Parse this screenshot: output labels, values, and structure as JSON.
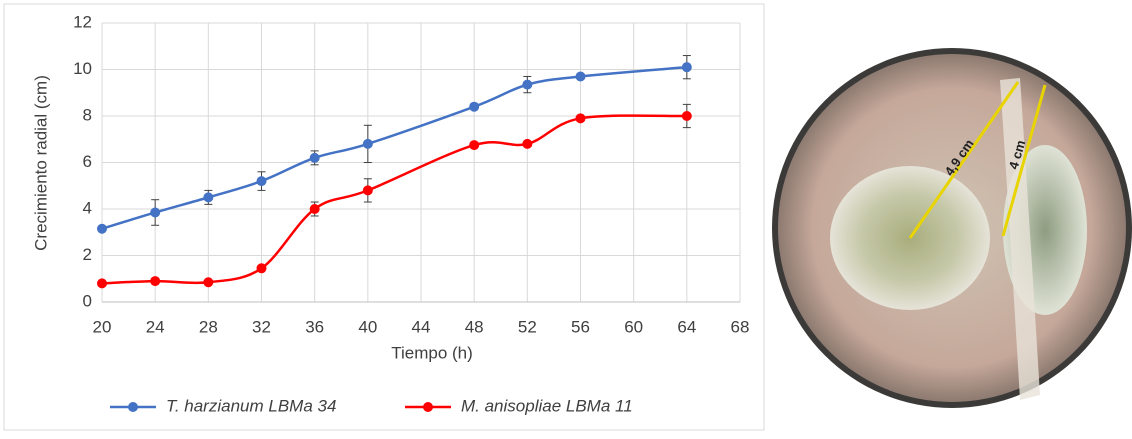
{
  "chart_data": {
    "type": "line",
    "xlabel": "Tiempo (h)",
    "ylabel": "Crecimiento radial (cm)",
    "x": [
      20,
      24,
      28,
      32,
      36,
      40,
      48,
      52,
      56,
      64
    ],
    "series": [
      {
        "name": "T. harzianum LBMa 34",
        "color": "#4472c4",
        "values": [
          3.15,
          3.85,
          4.5,
          5.2,
          6.2,
          6.8,
          8.4,
          9.35,
          9.7,
          10.1
        ],
        "errors": [
          0,
          0.55,
          0.3,
          0.4,
          0.3,
          0.8,
          0.1,
          0.35,
          0.1,
          0.5
        ]
      },
      {
        "name": "M. anisopliae LBMa 11",
        "color": "#ff0000",
        "values": [
          0.8,
          0.9,
          0.85,
          1.45,
          4.0,
          4.8,
          6.75,
          6.8,
          7.9,
          8.0
        ],
        "errors": [
          0,
          0,
          0,
          0.1,
          0.3,
          0.5,
          0.1,
          0.1,
          0.1,
          0.5
        ]
      }
    ],
    "xlim": [
      20,
      68
    ],
    "xticks": [
      20,
      24,
      28,
      32,
      36,
      40,
      44,
      48,
      52,
      56,
      60,
      64,
      68
    ],
    "ylim": [
      0,
      12
    ],
    "yticks": [
      0,
      2,
      4,
      6,
      8,
      10,
      12
    ],
    "grid": true,
    "legend": "bottom"
  },
  "photo": {
    "annotations": [
      "4,9 cm",
      "4 cm"
    ]
  }
}
